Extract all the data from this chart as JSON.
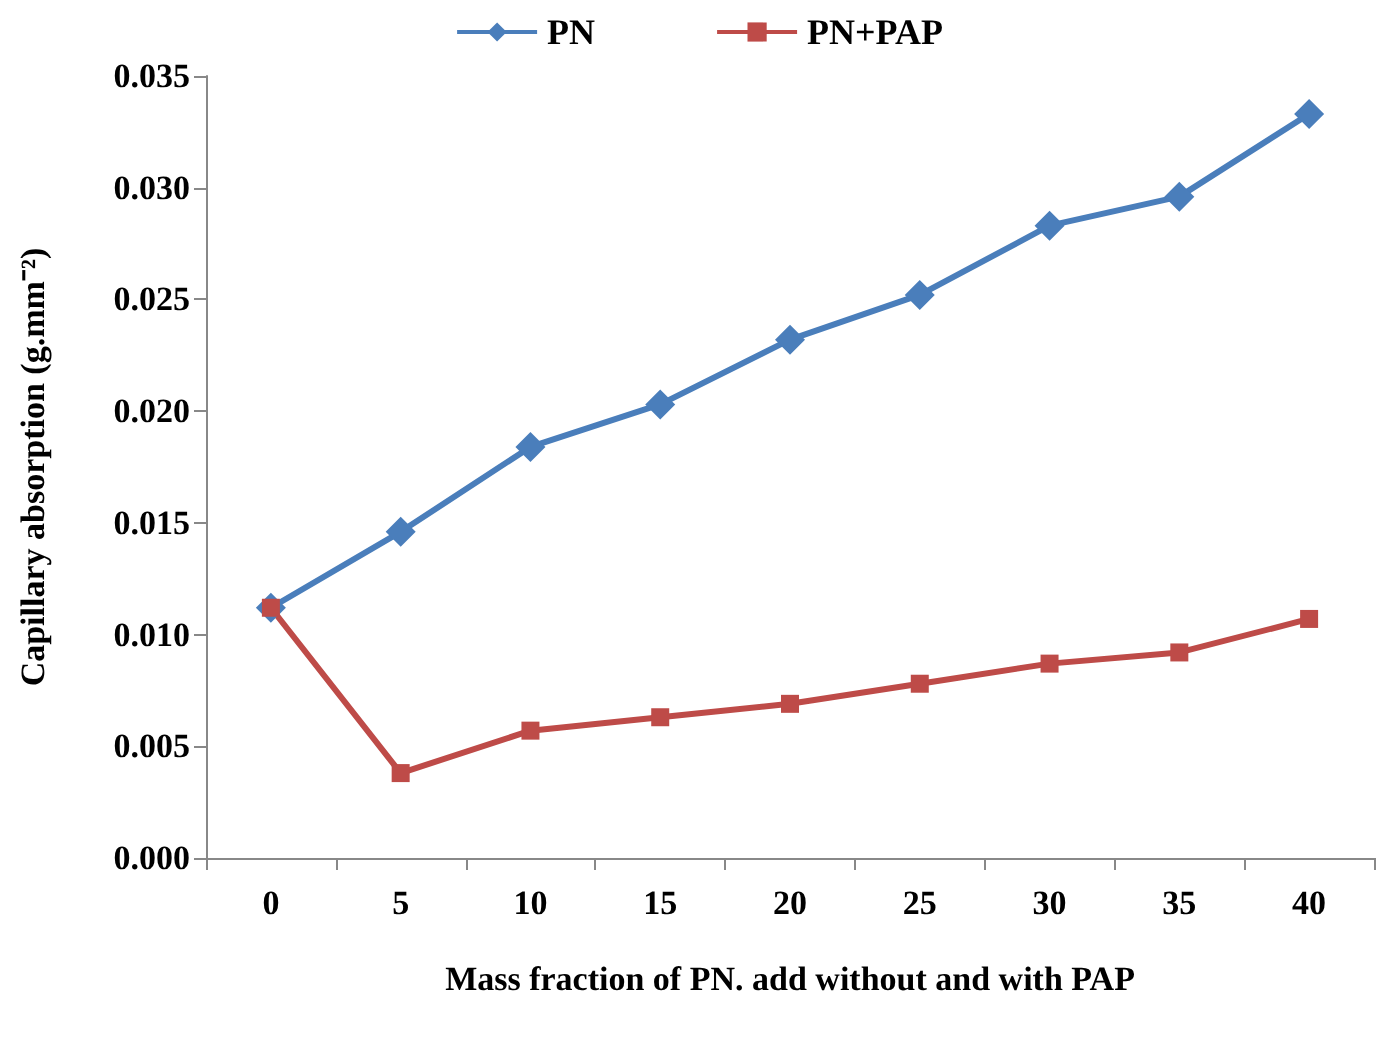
{
  "chart_data": {
    "type": "line",
    "xlabel": "Mass fraction of PN. add without and with PAP",
    "ylabel": "Capillary absorption (g.mm⁻²)",
    "categories": [
      "0",
      "5",
      "10",
      "15",
      "20",
      "25",
      "30",
      "35",
      "40"
    ],
    "series": [
      {
        "name": "PN",
        "color": "#4a7ebb",
        "marker": "diamond",
        "values": [
          0.0112,
          0.0146,
          0.0184,
          0.0203,
          0.0232,
          0.0252,
          0.0283,
          0.0296,
          0.0333
        ]
      },
      {
        "name": "PN+PAP",
        "color": "#be4b48",
        "marker": "square",
        "values": [
          0.0112,
          0.0038,
          0.0057,
          0.0063,
          0.0069,
          0.0078,
          0.0087,
          0.0092,
          0.0107
        ]
      }
    ],
    "ylim": [
      0,
      0.035
    ],
    "yticks": [
      {
        "value": 0,
        "label": "0.000"
      },
      {
        "value": 0.005,
        "label": "0.005"
      },
      {
        "value": 0.01,
        "label": "0.010"
      },
      {
        "value": 0.015,
        "label": "0.015"
      },
      {
        "value": 0.02,
        "label": "0.020"
      },
      {
        "value": 0.025,
        "label": "0.025"
      },
      {
        "value": 0.03,
        "label": "0.030"
      },
      {
        "value": 0.035,
        "label": "0.035"
      }
    ],
    "grid": false,
    "legend": "top",
    "line_style": "solid"
  }
}
